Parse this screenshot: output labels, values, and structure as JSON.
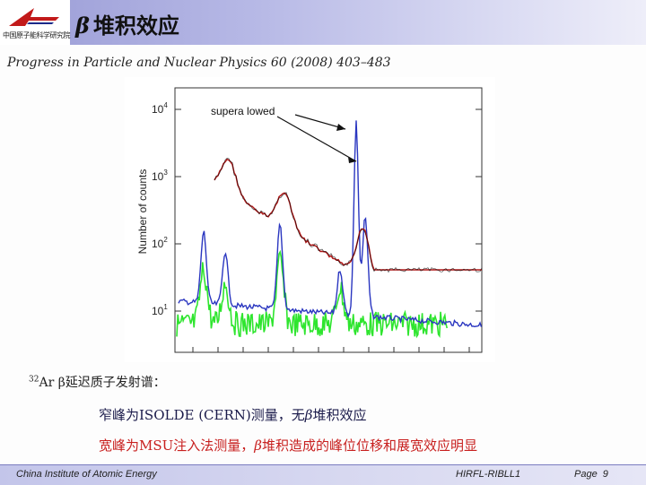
{
  "header": {
    "logo_text": "中国原子能科学研究院",
    "title_symbol": "β",
    "title_text": "堆积效应"
  },
  "citation": "Progress in Particle and Nuclear Physics 60 (2008) 403–483",
  "figure": {
    "annotation": "supera lowed",
    "ylabel": "Number of counts",
    "yticks": [
      {
        "base": "10",
        "exp": "4"
      },
      {
        "base": "10",
        "exp": "3"
      },
      {
        "base": "10",
        "exp": "2"
      },
      {
        "base": "10",
        "exp": "1"
      }
    ],
    "colors": {
      "red": "#b01818",
      "blue": "#2a36c0",
      "green": "#2ee52e"
    }
  },
  "caption": {
    "mass": "32",
    "element": "Ar",
    "text": "β延迟质子发射谱："
  },
  "line2": {
    "pre": "窄峰为ISOLDE (CERN)测量，无",
    "beta": "β",
    "post": "堆积效应"
  },
  "line3": {
    "pre": "宽峰为MSU注入法测量，",
    "beta": "β",
    "post": "堆积造成的峰位位移和展宽效应明显"
  },
  "footer": {
    "institute": "China Institute of Atomic Energy",
    "group": "HIRFL-RIBLL1",
    "page_label": "Page",
    "page_number": "9"
  }
}
